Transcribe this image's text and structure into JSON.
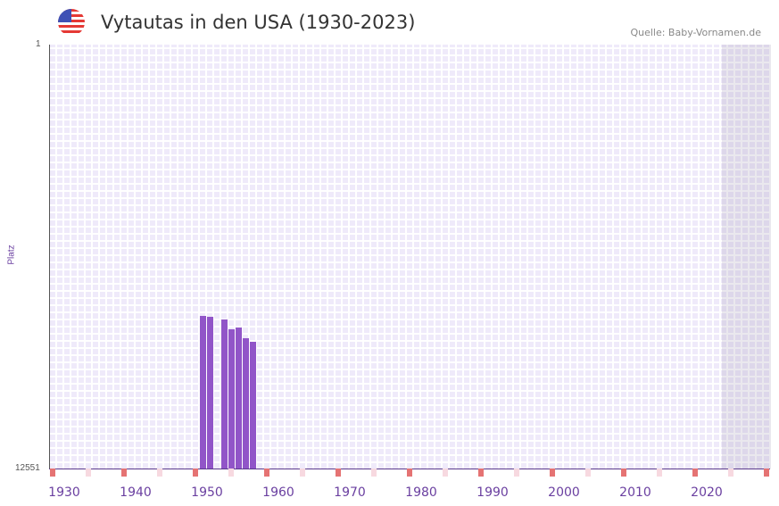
{
  "chart_data": {
    "type": "bar",
    "title": "Vytautas in den USA (1930-2023)",
    "source": "Quelle: Baby-Vornamen.de",
    "ylabel": "Platz",
    "ylim": [
      1,
      12551
    ],
    "y_inverted": true,
    "xlim": [
      1928,
      2029
    ],
    "x_ticks": [
      1930,
      1940,
      1950,
      1960,
      1970,
      1980,
      1990,
      2000,
      2010,
      2020
    ],
    "y_ticks": [
      "1",
      "12551"
    ],
    "x": [
      1949,
      1950,
      1952,
      1953,
      1954,
      1955,
      1956
    ],
    "values": [
      8033,
      8059,
      8138,
      8429,
      8376,
      8693,
      8799
    ],
    "bar_color": "#9155c8",
    "marker_color": "#e57373"
  }
}
